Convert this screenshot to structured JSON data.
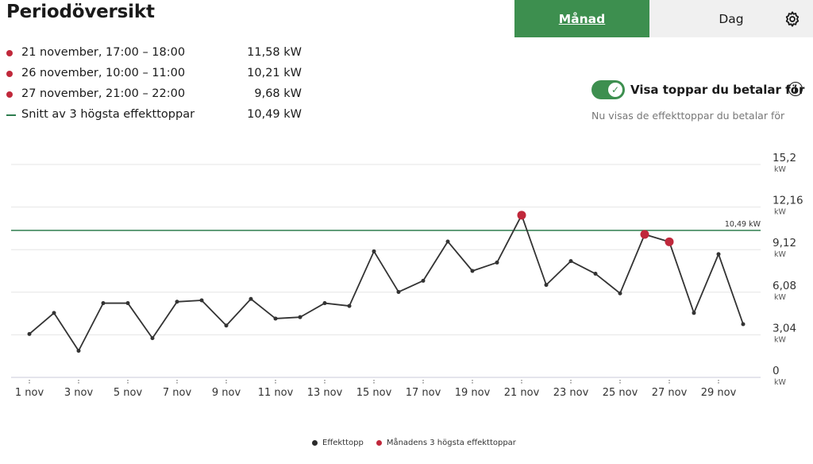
{
  "page": {
    "title": "Periodöversikt"
  },
  "peaks": [
    {
      "label": "21 november, 17:00 – 18:00",
      "value": "11,58 kW",
      "marker": "dot"
    },
    {
      "label": "26 november, 10:00 – 11:00",
      "value": "10,21 kW",
      "marker": "dot"
    },
    {
      "label": "27 november, 21:00 – 22:00",
      "value": "9,68 kW",
      "marker": "dot"
    },
    {
      "label": "Snitt av 3 högsta effekttoppar",
      "value": "10,49 kW",
      "marker": "line"
    }
  ],
  "tabs": {
    "month": "Månad",
    "day": "Dag",
    "active": "month",
    "settings_icon": "gear-icon"
  },
  "toggle": {
    "checked": true,
    "label": "Visa toppar du betalar för",
    "subtext": "Nu visas de effekttoppar du betalar för",
    "info_icon": "info-icon"
  },
  "colors": {
    "accent": "#3d8f4f",
    "peak": "#c0283b",
    "line": "#333333",
    "average": "#2e7d4f"
  },
  "legend": [
    {
      "label": "Effekttopp",
      "color": "#2b2b2b"
    },
    {
      "label": "Månadens 3 högsta effekttoppar",
      "color": "#c0283b"
    }
  ],
  "chart_data": {
    "type": "line",
    "x": [
      1,
      2,
      3,
      4,
      5,
      6,
      7,
      8,
      9,
      10,
      11,
      12,
      13,
      14,
      15,
      16,
      17,
      18,
      19,
      20,
      21,
      22,
      23,
      24,
      25,
      26,
      27,
      28,
      29,
      30
    ],
    "series": [
      {
        "values": [
          3.1,
          4.6,
          1.9,
          5.3,
          5.3,
          2.8,
          5.4,
          5.5,
          3.7,
          5.6,
          4.2,
          4.3,
          5.3,
          5.1,
          9.0,
          6.1,
          6.9,
          9.7,
          7.6,
          8.2,
          11.58,
          6.6,
          8.3,
          7.4,
          6.0,
          10.21,
          9.68,
          4.6,
          8.8,
          3.8
        ]
      }
    ],
    "peaks": [
      {
        "x": 21,
        "value": 11.58
      },
      {
        "x": 26,
        "value": 10.21
      },
      {
        "x": 27,
        "value": 9.68
      }
    ],
    "average": {
      "value": 10.49,
      "label": "10,49 kW"
    },
    "x_tick_labels": [
      "1 nov",
      "3 nov",
      "5 nov",
      "7 nov",
      "9 nov",
      "11 nov",
      "13 nov",
      "15 nov",
      "17 nov",
      "19 nov",
      "21 nov",
      "23 nov",
      "25 nov",
      "27 nov",
      "29 nov"
    ],
    "y_ticks": [
      0,
      3.04,
      6.08,
      9.12,
      12.16,
      15.2
    ],
    "y_tick_labels": [
      "0",
      "3,04",
      "6,08",
      "9,12",
      "12,16",
      "15,2"
    ],
    "y_unit": "kW",
    "ylim": [
      0,
      15.2
    ],
    "grid": true
  }
}
